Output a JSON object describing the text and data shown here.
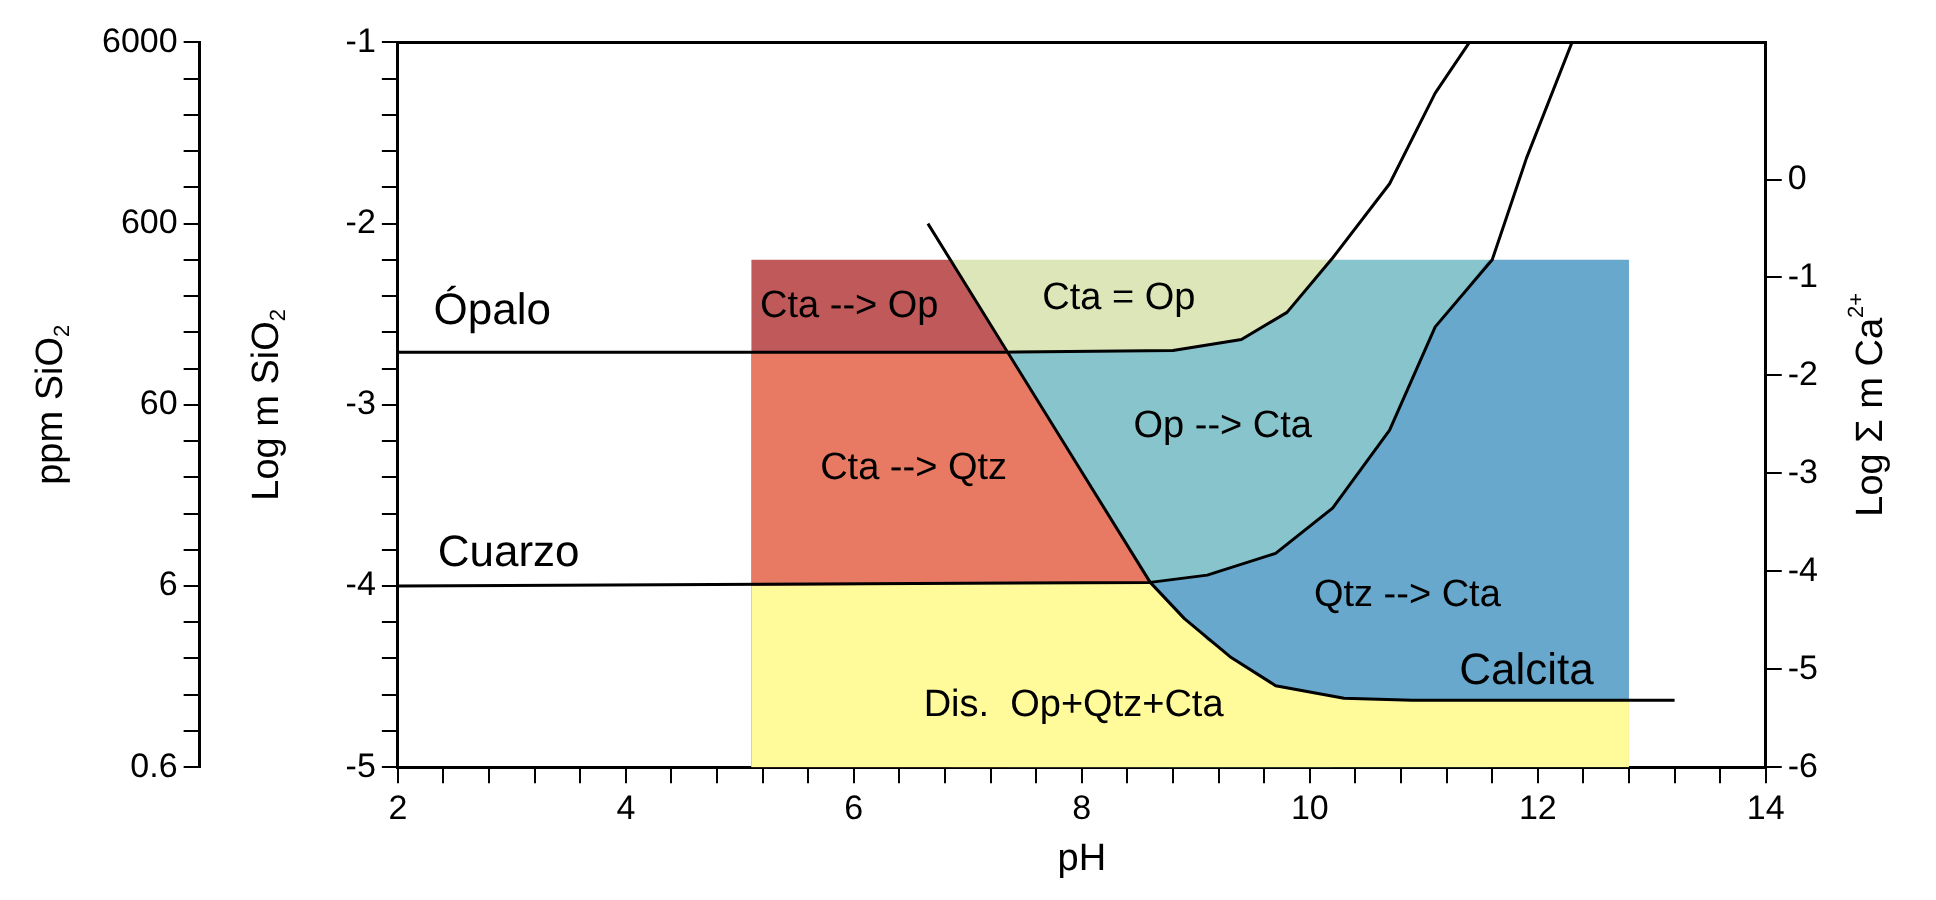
{
  "chart_data": {
    "type": "line",
    "xlabel": "pH",
    "ylabel": "Log m SiO$_{2}$",
    "y2label": "Log Σ m Ca$^{2+}$",
    "y3label": "ppm SiO$_{2}$",
    "xlim": [
      2,
      14
    ],
    "xticks": [
      2,
      {
        "value": 2.4,
        "label": null
      },
      {
        "value": 2.8,
        "label": null
      },
      {
        "value": 3.2,
        "label": null
      },
      {
        "value": 3.6,
        "label": null
      },
      4,
      {
        "value": 4.4,
        "label": null
      },
      {
        "value": 4.8,
        "label": null
      },
      {
        "value": 5.2,
        "label": null
      },
      {
        "value": 5.6,
        "label": null
      },
      6,
      {
        "value": 6.4,
        "label": null
      },
      {
        "value": 6.8,
        "label": null
      },
      {
        "value": 7.2,
        "label": null
      },
      {
        "value": 7.6,
        "label": null
      },
      8,
      {
        "value": 8.4,
        "label": null
      },
      {
        "value": 8.8,
        "label": null
      },
      {
        "value": 9.2,
        "label": null
      },
      {
        "value": 9.6,
        "label": null
      },
      10,
      {
        "value": 10.4,
        "label": null
      },
      {
        "value": 10.8,
        "label": null
      },
      {
        "value": 11.2,
        "label": null
      },
      {
        "value": 11.6,
        "label": null
      },
      12,
      {
        "value": 12.4,
        "label": null
      },
      {
        "value": 12.8,
        "label": null
      },
      {
        "value": 13.2,
        "label": null
      },
      {
        "value": 13.6,
        "label": null
      },
      14
    ],
    "ylim": [
      -5,
      -1
    ],
    "yticks": [
      -5,
      {
        "value": -4.8,
        "label": null
      },
      {
        "value": -4.6,
        "label": null
      },
      {
        "value": -4.4,
        "label": null
      },
      {
        "value": -4.2,
        "label": null
      },
      -4,
      {
        "value": -3.8,
        "label": null
      },
      {
        "value": -3.6,
        "label": null
      },
      {
        "value": -3.4,
        "label": null
      },
      {
        "value": -3.2,
        "label": null
      },
      -3,
      {
        "value": -2.8,
        "label": null
      },
      {
        "value": -2.6,
        "label": null
      },
      {
        "value": -2.4,
        "label": null
      },
      {
        "value": -2.2,
        "label": null
      },
      -2,
      {
        "value": -1.8,
        "label": null
      },
      {
        "value": -1.6,
        "label": null
      },
      {
        "value": -1.4,
        "label": null
      },
      {
        "value": -1.2,
        "label": null
      },
      -1
    ],
    "y2lim": [
      -6,
      1.4
    ],
    "y2ticks": [
      -6,
      -5,
      -4,
      -3,
      -2,
      -1,
      0
    ],
    "y3lim": [
      0.6,
      6000
    ],
    "y3ticks": [
      0.6,
      {
        "value": 0.95,
        "label": null
      },
      {
        "value": 1.5,
        "label": null
      },
      {
        "value": 2.4,
        "label": null
      },
      {
        "value": 3.8,
        "label": null
      },
      6,
      {
        "value": 9.5,
        "label": null
      },
      {
        "value": 15,
        "label": null
      },
      {
        "value": 24,
        "label": null
      },
      {
        "value": 38,
        "label": null
      },
      60,
      {
        "value": 95,
        "label": null
      },
      {
        "value": 151,
        "label": null
      },
      {
        "value": 239,
        "label": null
      },
      {
        "value": 379,
        "label": null
      },
      600,
      {
        "value": 951,
        "label": null
      },
      {
        "value": 1507,
        "label": null
      },
      {
        "value": 2389,
        "label": null
      },
      {
        "value": 3786,
        "label": null
      },
      6000
    ],
    "log": "y3",
    "grid": false,
    "legend": false,
    "marker": "none",
    "line_style": "solid",
    "series": [
      {
        "type": "area",
        "color": "#dde6b8",
        "x": [
          6.85,
          6.85,
          10.2,
          10.2
        ],
        "values": [
          -5,
          -2.2,
          -2.2,
          -5
        ]
      },
      {
        "type": "area",
        "color": "#c0595a",
        "x": [
          5.1,
          5.1,
          6.85,
          7.35,
          7.35
        ],
        "values": [
          -5,
          -2.2,
          -2.2,
          -2.71,
          -5
        ]
      },
      {
        "type": "area",
        "color": "#88c4cc",
        "x": [
          7.35,
          7.35,
          8.8,
          9.4,
          9.8,
          10.2,
          11.57,
          11.57
        ],
        "values": [
          -5,
          -2.71,
          -2.7,
          -2.64,
          -2.49,
          -2.2,
          -2.2,
          -5
        ]
      },
      {
        "type": "area",
        "color": "#67a8cc",
        "x": [
          8.6,
          8.6,
          9.1,
          9.7,
          10.2,
          10.7,
          11.1,
          11.57,
          12.8,
          12.8
        ],
        "values": [
          -5,
          -3.98,
          -3.94,
          -3.82,
          -3.57,
          -3.14,
          -2.57,
          -2.2,
          -2.2,
          -5
        ]
      },
      {
        "type": "area",
        "color": "#e87a63",
        "x": [
          5.1,
          5.1,
          7.35,
          8.6,
          8.6
        ],
        "values": [
          -5,
          -2.71,
          -2.71,
          -3.98,
          -5
        ]
      },
      {
        "type": "area",
        "color": "#fffa9a",
        "x": [
          5.1,
          5.1,
          8.6,
          9.1,
          9.7,
          10.3,
          10.9,
          12.8,
          12.8
        ],
        "values": [
          -5,
          -4.0,
          -3.98,
          -4.3,
          -4.55,
          -4.62,
          -4.63,
          -4.63,
          -5
        ]
      },
      {
        "type": "line",
        "color": "#000000",
        "x": [
          2,
          7.3,
          8.8,
          9.4,
          9.8,
          10.2,
          10.7,
          11.1,
          11.4
        ],
        "values": [
          -2.71,
          -2.71,
          -2.7,
          -2.64,
          -2.49,
          -2.19,
          -1.78,
          -1.28,
          -1.0
        ]
      },
      {
        "type": "line",
        "color": "#000000",
        "x": [
          2,
          8.6,
          9.1,
          9.7,
          10.2,
          10.7,
          11.1,
          11.6,
          11.9,
          12.3
        ],
        "values": [
          -4.0,
          -3.98,
          -3.94,
          -3.82,
          -3.57,
          -3.14,
          -2.57,
          -2.2,
          -1.64,
          -1.0
        ]
      },
      {
        "type": "line",
        "color": "#000000",
        "x": [
          6.65,
          8.6,
          8.9,
          9.3,
          9.7,
          10.3,
          10.9,
          13.2
        ],
        "values": [
          -2.0,
          -3.98,
          -4.18,
          -4.39,
          -4.55,
          -4.62,
          -4.63,
          -4.63
        ]
      }
    ],
    "annotations": [
      "Ópalo",
      "Cuarzo",
      "Calcita",
      "Cta --> Op",
      "Cta = Op",
      "Cta --> Qtz",
      "Op --> Cta",
      "Qtz --> Cta",
      "Dis.  Op+Qtz+Cta"
    ]
  }
}
